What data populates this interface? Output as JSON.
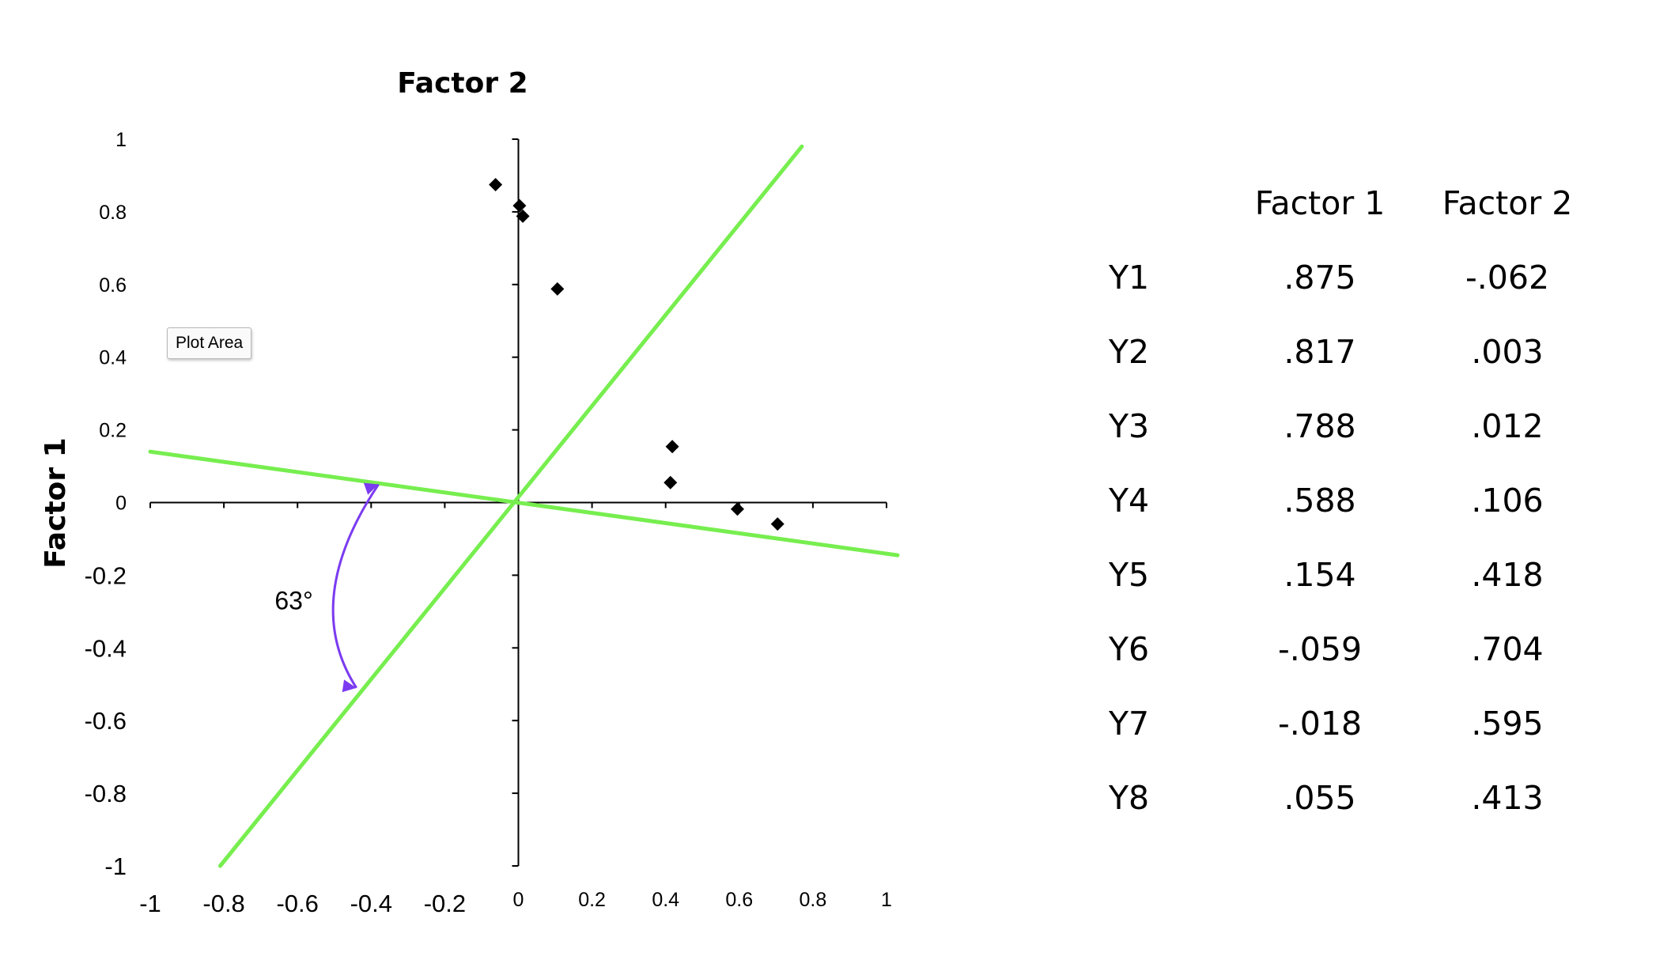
{
  "chart_data": {
    "type": "scatter",
    "title": "Factor 2",
    "xlabel": "",
    "ylabel": "Factor 1",
    "xlim": [
      -1,
      1
    ],
    "ylim": [
      -1,
      1
    ],
    "x_ticks": [
      "-1",
      "-0.8",
      "-0.6",
      "-0.4",
      "-0.2",
      "0",
      "0.2",
      "0.4",
      "0.6",
      "0.8",
      "1"
    ],
    "y_ticks": [
      "1",
      "0.8",
      "0.6",
      "0.4",
      "0.2",
      "0",
      "-0.2",
      "-0.4",
      "-0.6",
      "-0.8",
      "-1"
    ],
    "grid": false,
    "series": [
      {
        "marker": "diamond",
        "color": "#000000",
        "points": [
          {
            "x": -0.062,
            "y": 0.875
          },
          {
            "x": 0.003,
            "y": 0.817
          },
          {
            "x": 0.012,
            "y": 0.788
          },
          {
            "x": 0.106,
            "y": 0.588
          },
          {
            "x": 0.418,
            "y": 0.154
          },
          {
            "x": 0.704,
            "y": -0.059
          },
          {
            "x": 0.595,
            "y": -0.018
          },
          {
            "x": 0.413,
            "y": 0.055
          }
        ]
      }
    ],
    "reference_lines": [
      {
        "color": "#77ee4f",
        "from": {
          "x": -1.0,
          "y": 0.14
        },
        "to": {
          "x": 1.03,
          "y": -0.145
        }
      },
      {
        "color": "#77ee4f",
        "from": {
          "x": -0.81,
          "y": -1.0
        },
        "to": {
          "x": 0.77,
          "y": 0.98
        }
      }
    ],
    "annotations": [
      {
        "text": "63°",
        "type": "angle-arc",
        "color": "#7b3bf0",
        "from": {
          "x": -0.38,
          "y": 0.05
        },
        "to": {
          "x": -0.44,
          "y": -0.51
        },
        "label_at": {
          "x": -0.61,
          "y": -0.27
        }
      }
    ],
    "colors": {
      "axis": "#000000",
      "line": "#77ee4f",
      "arc": "#7b3bf0",
      "marker": "#000000"
    }
  },
  "tooltip": {
    "text": "Plot Area"
  },
  "table": {
    "headers": [
      "",
      "Factor 1",
      "Factor 2"
    ],
    "rows": [
      {
        "label": "Y1",
        "f1": ".875",
        "f2": "-.062"
      },
      {
        "label": "Y2",
        "f1": ".817",
        "f2": ".003"
      },
      {
        "label": "Y3",
        "f1": ".788",
        "f2": ".012"
      },
      {
        "label": "Y4",
        "f1": ".588",
        "f2": ".106"
      },
      {
        "label": "Y5",
        "f1": ".154",
        "f2": ".418"
      },
      {
        "label": "Y6",
        "f1": "-.059",
        "f2": ".704"
      },
      {
        "label": "Y7",
        "f1": "-.018",
        "f2": ".595"
      },
      {
        "label": "Y8",
        "f1": ".055",
        "f2": ".413"
      }
    ]
  }
}
